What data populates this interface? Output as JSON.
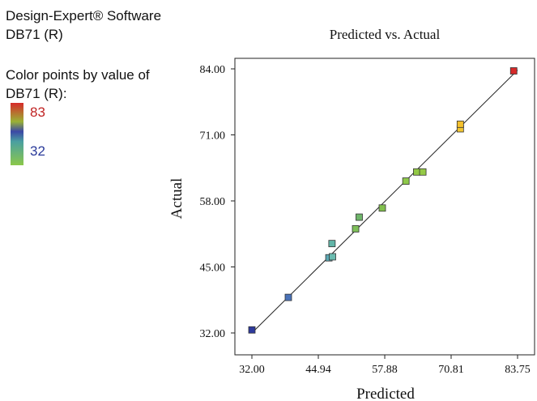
{
  "header": {
    "software_line1": "Design-Expert® Software",
    "software_line2": "DB71 (R)"
  },
  "legend": {
    "title_line1": "Color points by value of",
    "title_line2": "DB71 (R):",
    "max_label": "83",
    "min_label": "32",
    "colors": {
      "high": "#d62a2a",
      "mid_high": "#9ab235",
      "mid": "#3b48a6",
      "mid_low": "#4aa0a0",
      "low": "#8cc84a"
    }
  },
  "chart_data": {
    "type": "scatter",
    "title": "Predicted vs. Actual",
    "xlabel": "Predicted",
    "ylabel": "Actual",
    "xlim": [
      32.0,
      83.75
    ],
    "ylim": [
      32.0,
      84.0
    ],
    "x_ticks": [
      "32.00",
      "44.94",
      "57.88",
      "70.81",
      "83.75"
    ],
    "y_ticks": [
      "32.00",
      "45.00",
      "58.00",
      "71.00",
      "84.00"
    ],
    "reference_line": "y = x",
    "points": [
      {
        "x": 32.0,
        "y": 32.6,
        "color": "#2d3a9c"
      },
      {
        "x": 39.1,
        "y": 39.0,
        "color": "#4a72b8"
      },
      {
        "x": 47.0,
        "y": 46.8,
        "color": "#5ba8b4"
      },
      {
        "x": 47.7,
        "y": 47.0,
        "color": "#6bbcb0"
      },
      {
        "x": 47.6,
        "y": 49.6,
        "color": "#62b5a8"
      },
      {
        "x": 52.2,
        "y": 52.5,
        "color": "#7ebf5a"
      },
      {
        "x": 52.9,
        "y": 54.8,
        "color": "#6fb56a"
      },
      {
        "x": 57.4,
        "y": 56.6,
        "color": "#82c04e"
      },
      {
        "x": 62.0,
        "y": 61.9,
        "color": "#8ec84a"
      },
      {
        "x": 64.1,
        "y": 63.7,
        "color": "#93c946"
      },
      {
        "x": 65.3,
        "y": 63.7,
        "color": "#95ca46"
      },
      {
        "x": 72.6,
        "y": 72.2,
        "color": "#f2c531"
      },
      {
        "x": 72.6,
        "y": 73.1,
        "color": "#f4c02c"
      },
      {
        "x": 83.0,
        "y": 83.6,
        "color": "#d62a2a"
      }
    ]
  }
}
